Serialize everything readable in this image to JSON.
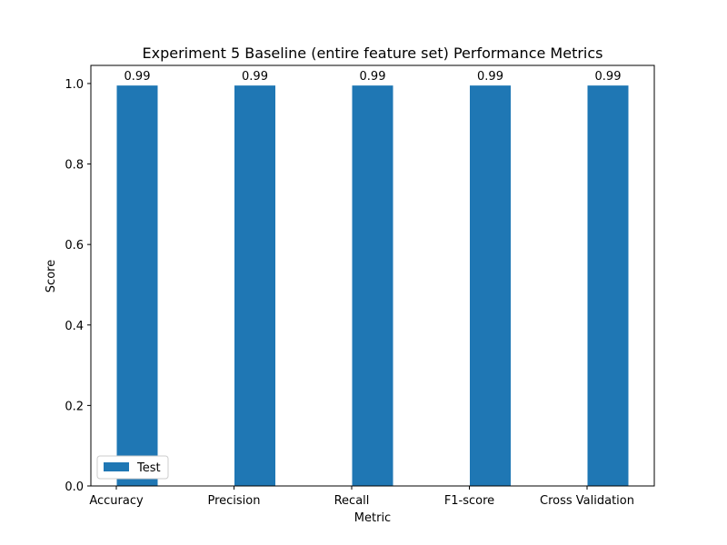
{
  "chart_data": {
    "type": "bar",
    "title": "Experiment 5 Baseline (entire feature set) Performance Metrics",
    "xlabel": "Metric",
    "ylabel": "Score",
    "categories": [
      "Accuracy",
      "Precision",
      "Recall",
      "F1-score",
      "Cross Validation"
    ],
    "series": [
      {
        "name": "Test",
        "values": [
          0.995,
          0.995,
          0.995,
          0.995,
          0.995
        ],
        "labels": [
          "0.99",
          "0.99",
          "0.99",
          "0.99",
          "0.99"
        ],
        "color": "#1f77b4"
      }
    ],
    "ylim": [
      0,
      1.045
    ],
    "yticks": [
      0.0,
      0.2,
      0.4,
      0.6,
      0.8,
      1.0
    ],
    "ytick_labels": [
      "0.0",
      "0.2",
      "0.4",
      "0.6",
      "0.8",
      "1.0"
    ],
    "grid": false,
    "legend": "lower-left"
  }
}
